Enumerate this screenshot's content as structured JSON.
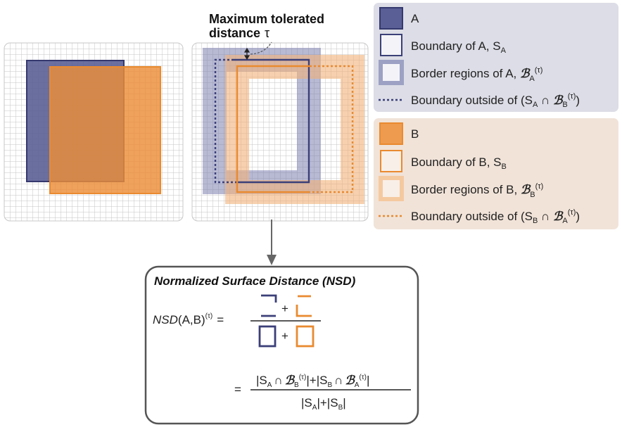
{
  "annotation": {
    "line1": "Maximum tolerated",
    "line2": "distance",
    "tau": "τ"
  },
  "legend_a": {
    "item1": {
      "text": "A"
    },
    "item2": {
      "text": "Boundary of A, S",
      "sub": "A"
    },
    "item3": {
      "text": "Border regions of A, ",
      "script": "ℬ",
      "sub": "A",
      "sup": "(τ)"
    },
    "item4": {
      "pre": "Boundary outside of (S",
      "sub1": "A",
      "cap": " ∩ ",
      "script": "ℬ",
      "sub2": "B",
      "sup": "(τ)",
      "post": ")"
    }
  },
  "legend_b": {
    "item1": {
      "text": "B"
    },
    "item2": {
      "text": "Boundary of B, S",
      "sub": "B"
    },
    "item3": {
      "text": "Border regions of B, ",
      "script": "ℬ",
      "sub": "B",
      "sup": "(τ)"
    },
    "item4": {
      "pre": "Boundary outside of (S",
      "sub1": "B",
      "cap": " ∩ ",
      "script": "ℬ",
      "sub2": "A",
      "sup": "(τ)",
      "post": ")"
    }
  },
  "formula_box": {
    "title": "Normalized Surface Distance (NSD)",
    "lhs_name": "NSD",
    "lhs_args": "(A,B)",
    "lhs_sup": "(τ)",
    "equals": "=",
    "plus": "+",
    "num_s1": "S",
    "num_s1_sub": "A",
    "cap": "∩",
    "script": "ℬ",
    "num_b1_sub": "B",
    "num_s2": "S",
    "num_s2_sub": "B",
    "num_b2_sub": "A",
    "sup": "(τ)",
    "den_s1": "S",
    "den_s1_sub": "A",
    "den_s2": "S",
    "den_s2_sub": "B"
  },
  "colors": {
    "a_fill": "#5a5f96",
    "a_stroke": "#35396e",
    "a_border_region": "#9da1c4",
    "b_fill": "#ee9b4f",
    "b_stroke": "#e98a30",
    "b_border_region": "#f5c9a0",
    "legend_a_bg": "#dcdde6",
    "legend_b_bg": "#f1e3d8",
    "grid": "#bfbfbf"
  }
}
